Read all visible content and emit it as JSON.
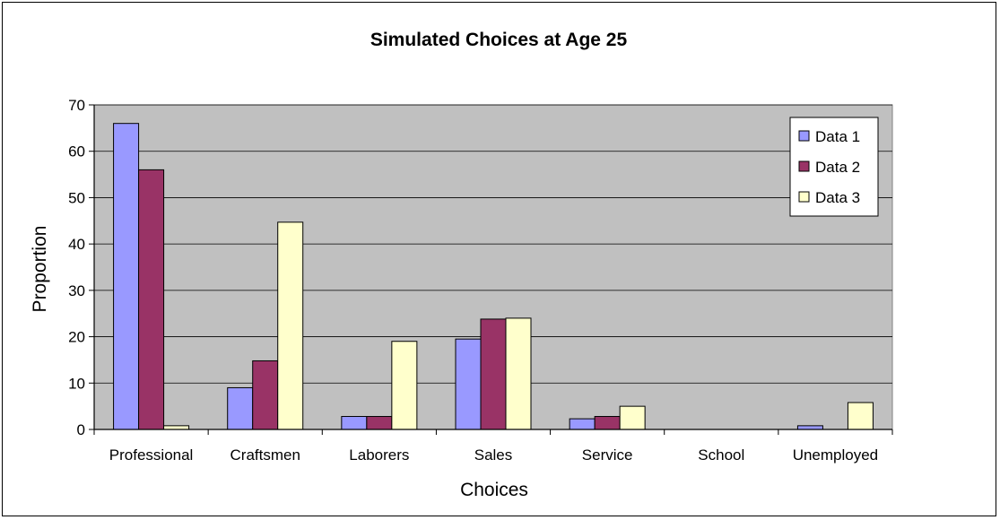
{
  "chart_data": {
    "type": "bar",
    "title": "Simulated Choices at Age 25",
    "xlabel": "Choices",
    "ylabel": "Proportion",
    "categories": [
      "Professional",
      "Craftsmen",
      "Laborers",
      "Sales",
      "Service",
      "School",
      "Unemployed"
    ],
    "series": [
      {
        "name": "Data 1",
        "color": "#9999ff",
        "values": [
          66,
          9,
          2.8,
          19.5,
          2.3,
          0,
          0.8
        ]
      },
      {
        "name": "Data 2",
        "color": "#993366",
        "values": [
          56,
          14.8,
          2.8,
          23.8,
          2.8,
          0,
          0
        ]
      },
      {
        "name": "Data 3",
        "color": "#ffffcc",
        "values": [
          0.8,
          44.7,
          19,
          24,
          5,
          0,
          5.8
        ]
      }
    ],
    "ylim": [
      0,
      70
    ],
    "yticks": [
      0,
      10,
      20,
      30,
      40,
      50,
      60,
      70
    ],
    "grid": true,
    "plot_background": "#c0c0c0",
    "legend_position": "top-right"
  }
}
